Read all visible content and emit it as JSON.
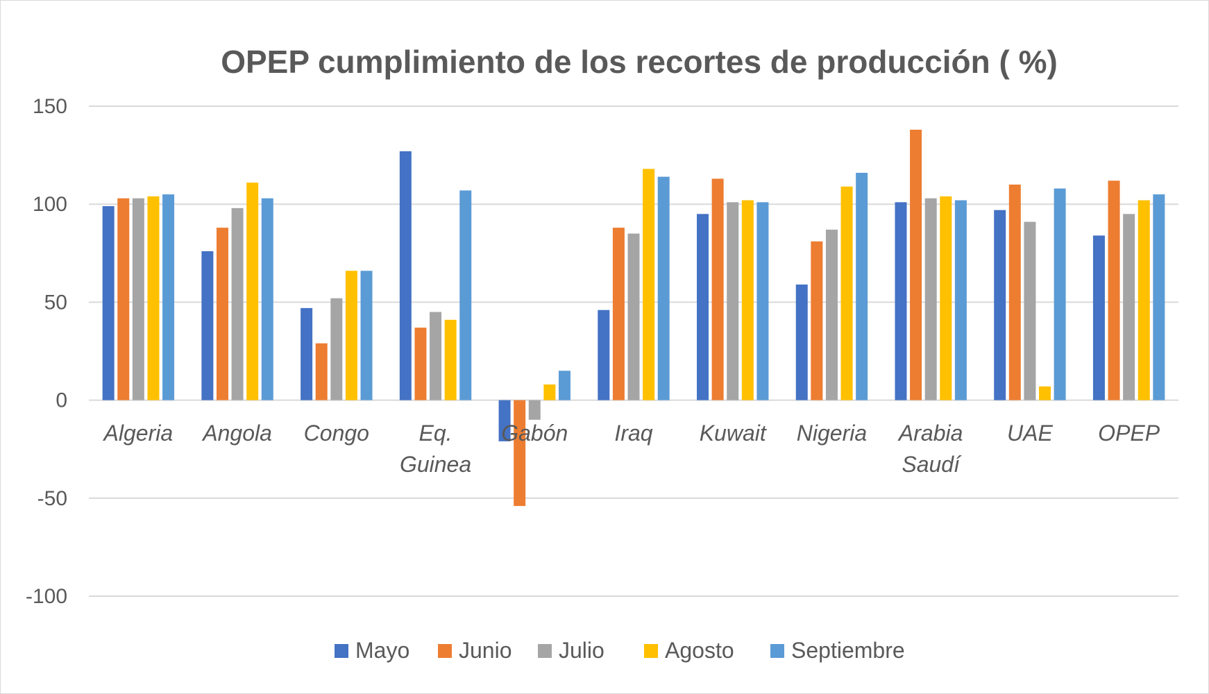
{
  "chart_data": {
    "type": "bar",
    "title": "OPEP cumplimiento de los recortes de producción ( %)",
    "xlabel": "",
    "ylabel": "",
    "ylim": [
      -100,
      150
    ],
    "yticks": [
      150,
      100,
      50,
      0,
      -50,
      -100
    ],
    "ytick_labels": [
      "150",
      "100",
      "50",
      "0",
      "-50",
      "-100"
    ],
    "grid": true,
    "legend_position": "bottom",
    "categories": [
      [
        "Algeria"
      ],
      [
        "Angola"
      ],
      [
        "Congo"
      ],
      [
        "Eq.",
        "Guinea"
      ],
      [
        "Gabón"
      ],
      [
        "Iraq"
      ],
      [
        "Kuwait"
      ],
      [
        "Nigeria"
      ],
      [
        "Arabia",
        "Saudí"
      ],
      [
        "UAE"
      ],
      [
        "OPEP"
      ]
    ],
    "series": [
      {
        "name": "Mayo",
        "color": "#4472c4",
        "values": [
          99,
          76,
          47,
          127,
          -21,
          46,
          95,
          59,
          101,
          97,
          84
        ]
      },
      {
        "name": "Junio",
        "color": "#ed7d31",
        "values": [
          103,
          88,
          29,
          37,
          -54,
          88,
          113,
          81,
          138,
          110,
          112
        ]
      },
      {
        "name": "Julio",
        "color": "#a5a5a5",
        "values": [
          103,
          98,
          52,
          45,
          -10,
          85,
          101,
          87,
          103,
          91,
          95
        ]
      },
      {
        "name": "Agosto",
        "color": "#ffc000",
        "values": [
          104,
          111,
          66,
          41,
          8,
          118,
          102,
          109,
          104,
          7,
          102
        ]
      },
      {
        "name": "Septiembre",
        "color": "#5b9bd5",
        "values": [
          105,
          103,
          66,
          107,
          15,
          114,
          101,
          116,
          102,
          108,
          105
        ]
      }
    ]
  }
}
